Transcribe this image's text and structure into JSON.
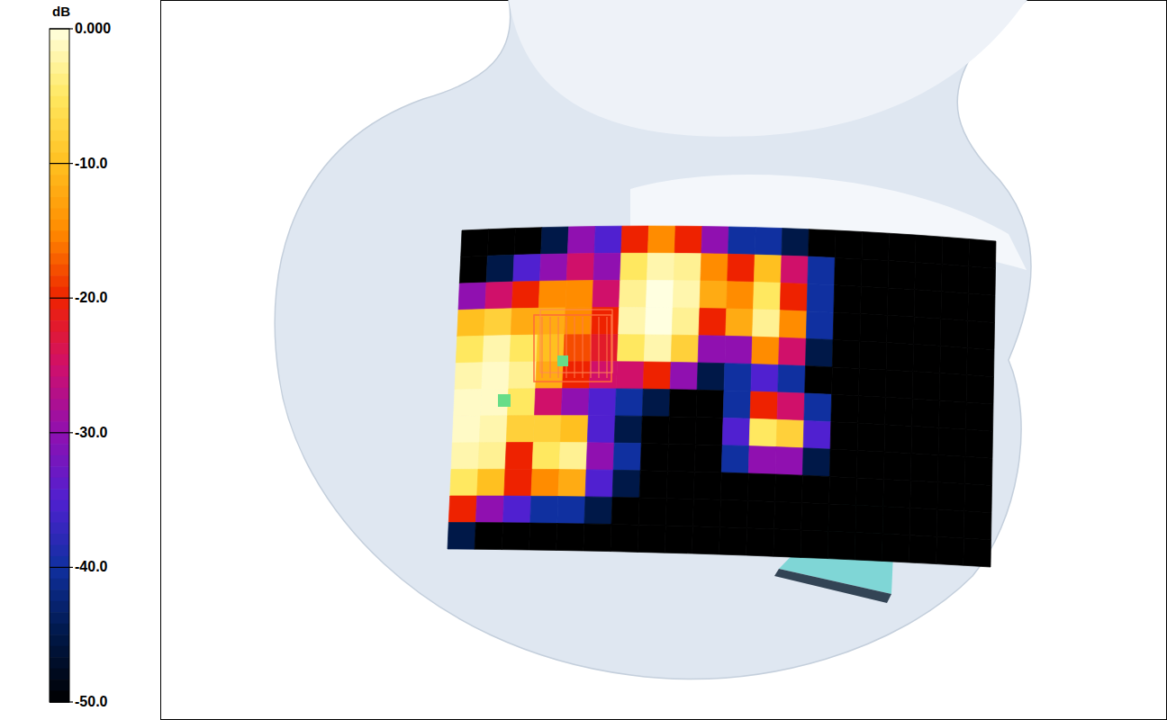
{
  "chart_data": {
    "type": "heatmap",
    "z_label": "dB",
    "zlim": [
      -50,
      0
    ],
    "zticks": [
      {
        "value": 0,
        "label": "0.000"
      },
      {
        "value": -10,
        "label": "-10.0"
      },
      {
        "value": -20,
        "label": "-20.0"
      },
      {
        "value": -30,
        "label": "-30.0"
      },
      {
        "value": -40,
        "label": "-40.0"
      },
      {
        "value": -50,
        "label": "-50.0"
      }
    ],
    "tick_labels": false,
    "cells": [
      [
        -50,
        -50,
        -50,
        -45,
        -30,
        -35,
        -20,
        -15,
        -20,
        -30,
        -40,
        -40,
        -45,
        -50,
        -50,
        -50,
        -50,
        -50,
        -50,
        -50
      ],
      [
        -50,
        -45,
        -35,
        -30,
        -25,
        -30,
        -5,
        -2,
        -3,
        -15,
        -20,
        -10,
        -25,
        -40,
        -50,
        -50,
        -50,
        -50,
        -50,
        -50
      ],
      [
        -30,
        -25,
        -20,
        -15,
        -15,
        -25,
        -3,
        0,
        -2,
        -12,
        -15,
        -5,
        -20,
        -40,
        -50,
        -50,
        -50,
        -50,
        -50,
        -50
      ],
      [
        -10,
        -8,
        -12,
        -12,
        -15,
        -20,
        -2,
        0,
        -3,
        -20,
        -12,
        -3,
        -15,
        -40,
        -50,
        -50,
        -50,
        -50,
        -50,
        -50
      ],
      [
        -5,
        -2,
        -5,
        -10,
        -18,
        -22,
        -5,
        -2,
        -8,
        -30,
        -30,
        -15,
        -25,
        -45,
        -50,
        -50,
        -50,
        -50,
        -50,
        -50
      ],
      [
        -2,
        -1,
        -3,
        -12,
        -20,
        -25,
        -25,
        -20,
        -30,
        -45,
        -40,
        -35,
        -40,
        -50,
        -50,
        -50,
        -50,
        -50,
        -50,
        -50
      ],
      [
        -1,
        -1,
        -5,
        -25,
        -30,
        -35,
        -40,
        -45,
        -50,
        -50,
        -40,
        -20,
        -25,
        -40,
        -50,
        -50,
        -50,
        -50,
        -50,
        -50
      ],
      [
        -1,
        -2,
        -8,
        -8,
        -10,
        -35,
        -45,
        -50,
        -50,
        -50,
        -35,
        -5,
        -8,
        -35,
        -50,
        -50,
        -50,
        -50,
        -50,
        -50
      ],
      [
        -2,
        -3,
        -20,
        -5,
        -3,
        -30,
        -40,
        -50,
        -50,
        -50,
        -40,
        -30,
        -30,
        -45,
        -50,
        -50,
        -50,
        -50,
        -50,
        -50
      ],
      [
        -5,
        -10,
        -20,
        -15,
        -12,
        -35,
        -45,
        -50,
        -50,
        -50,
        -50,
        -50,
        -50,
        -50,
        -50,
        -50,
        -50,
        -50,
        -50,
        -50
      ],
      [
        -20,
        -30,
        -35,
        -40,
        -40,
        -45,
        -50,
        -50,
        -50,
        -50,
        -50,
        -50,
        -50,
        -50,
        -50,
        -50,
        -50,
        -50,
        -50,
        -50
      ],
      [
        -45,
        -50,
        -50,
        -50,
        -50,
        -50,
        -50,
        -50,
        -50,
        -50,
        -50,
        -50,
        -50,
        -50,
        -50,
        -50,
        -50,
        -50,
        -50,
        -50
      ]
    ]
  }
}
